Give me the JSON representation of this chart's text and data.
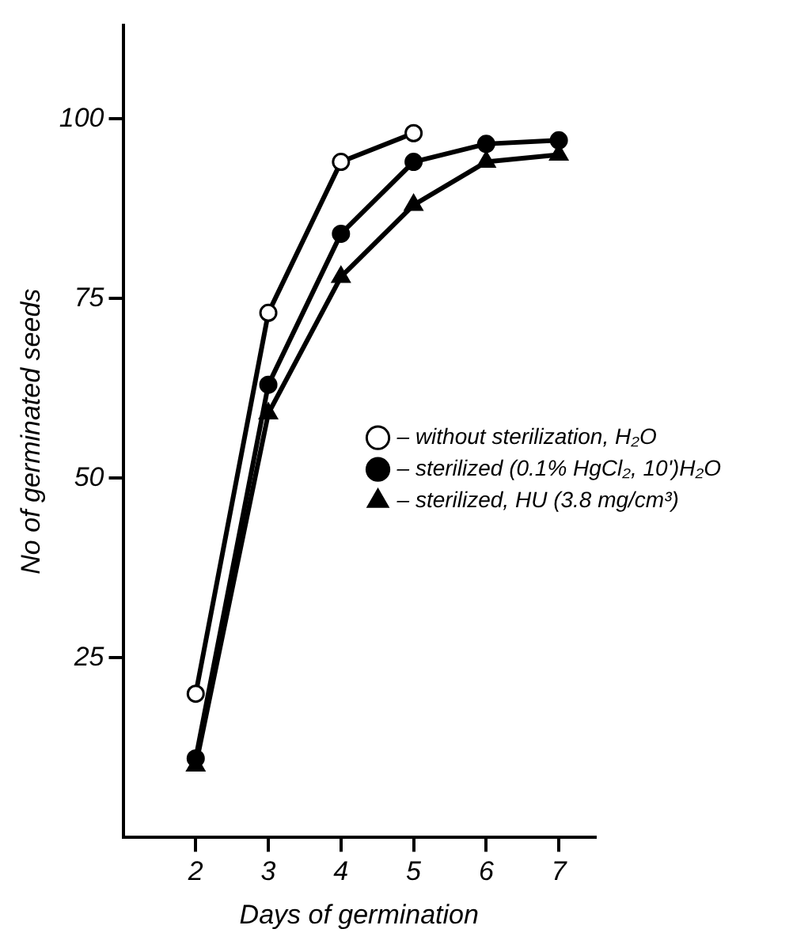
{
  "chart_data": {
    "type": "line",
    "xlabel": "Days of germination",
    "ylabel": "No of germinated seeds",
    "xlim": [
      1,
      7.5
    ],
    "xticks": [
      2,
      3,
      4,
      5,
      6,
      7
    ],
    "ylim": [
      0,
      113
    ],
    "yticks": [
      25,
      50,
      75,
      100
    ],
    "grid": false,
    "legend": "right",
    "line_style": "solid",
    "series": [
      {
        "name": "– without sterilization, H₂O",
        "color": "#000000",
        "colors": [
          "#ffffff",
          "#ffffff",
          "#ffffff",
          "#ffffff"
        ],
        "marker": "circle",
        "x": [
          2,
          3,
          4,
          5
        ],
        "values": [
          20,
          73,
          94,
          98
        ]
      },
      {
        "name": "– sterilized (0.1% HgCl₂, 10')H₂O",
        "color": "#000000",
        "marker": "circle",
        "x": [
          2,
          3,
          4,
          5,
          6,
          7
        ],
        "values": [
          11,
          63,
          84,
          94,
          96.5,
          97
        ]
      },
      {
        "name": "– sterilized, HU (3.8 mg/cm³)",
        "color": "#000000",
        "marker": "triangle",
        "x": [
          2,
          3,
          4,
          5,
          6,
          7
        ],
        "values": [
          10,
          59,
          78,
          88,
          94,
          95
        ]
      }
    ]
  }
}
